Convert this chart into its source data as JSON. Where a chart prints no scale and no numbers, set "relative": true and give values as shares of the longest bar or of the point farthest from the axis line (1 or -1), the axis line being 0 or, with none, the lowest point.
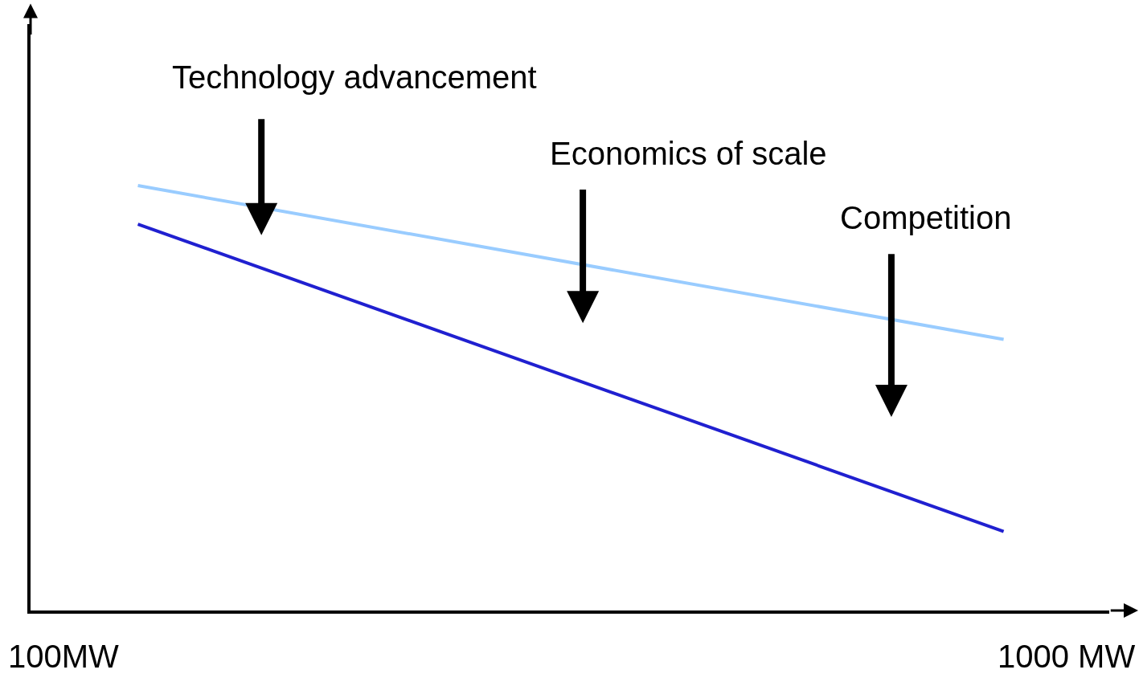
{
  "chart_data": {
    "type": "line",
    "relative": true,
    "categories": [
      null,
      null
    ],
    "series": [
      {
        "color": "#99ccff",
        "values": [
          1,
          0.638
        ]
      },
      {
        "color": "#2020d0",
        "values": [
          0.909,
          0.186
        ]
      }
    ],
    "annotations": [
      "Technology advancement",
      "Economics of scale",
      "Competition",
      "100MW",
      "1000 MW"
    ],
    "marker": "none",
    "line_style": "solid"
  }
}
